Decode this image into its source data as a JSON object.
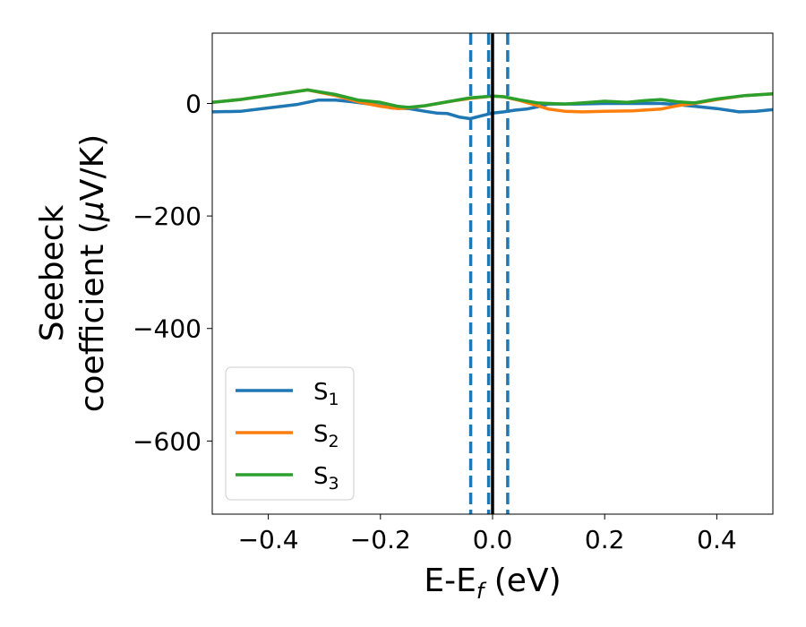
{
  "chart_data": {
    "type": "line",
    "xlabel": "E-E",
    "xlabel_sub": "f",
    "xlabel_unit": " (eV)",
    "ylabel_line1": "Seebeck",
    "ylabel_line2": "coefficient  (",
    "ylabel_mu": "μ",
    "ylabel_unit": "V/K)",
    "xlim": [
      -0.5,
      0.5
    ],
    "ylim": [
      -730,
      125
    ],
    "xticks": [
      -0.4,
      -0.2,
      0.0,
      0.2,
      0.4
    ],
    "xtick_labels": [
      "−0.4",
      "−0.2",
      "0.0",
      "0.2",
      "0.4"
    ],
    "yticks": [
      0,
      -200,
      -400,
      -600
    ],
    "ytick_labels": [
      "0",
      "−200",
      "−400",
      "−600"
    ],
    "legend_position": "lower-left",
    "series": [
      {
        "name": "S",
        "sub": "1",
        "color": "#1f77b4",
        "x": [
          -0.5,
          -0.45,
          -0.4,
          -0.35,
          -0.31,
          -0.28,
          -0.25,
          -0.22,
          -0.2,
          -0.18,
          -0.15,
          -0.12,
          -0.1,
          -0.08,
          -0.06,
          -0.04,
          -0.02,
          0.0,
          0.02,
          0.04,
          0.06,
          0.08,
          0.1,
          0.12,
          0.15,
          0.2,
          0.25,
          0.3,
          0.33,
          0.36,
          0.4,
          0.44,
          0.47,
          0.5
        ],
        "y": [
          -15,
          -14,
          -8,
          -2,
          6,
          6,
          3,
          -1,
          -4,
          -8,
          -9,
          -14,
          -17,
          -18,
          -24,
          -27,
          -22,
          -17,
          -15,
          -12,
          -10,
          -6,
          -1,
          -1,
          -1,
          0,
          0,
          0,
          -2,
          -5,
          -9,
          -15,
          -14,
          -11
        ]
      },
      {
        "name": "S",
        "sub": "2",
        "color": "#ff7f0e",
        "x": [
          -0.5,
          -0.45,
          -0.4,
          -0.33,
          -0.28,
          -0.24,
          -0.2,
          -0.17,
          -0.15,
          -0.12,
          -0.08,
          -0.04,
          0.0,
          0.02,
          0.05,
          0.08,
          0.1,
          0.13,
          0.16,
          0.2,
          0.25,
          0.3,
          0.33,
          0.36,
          0.4,
          0.45,
          0.5
        ],
        "y": [
          2,
          7,
          14,
          24,
          14,
          3,
          -5,
          -9,
          -8,
          -4,
          3,
          9,
          13,
          12,
          5,
          -4,
          -10,
          -14,
          -15,
          -14,
          -13,
          -10,
          -4,
          0,
          7,
          14,
          17
        ]
      },
      {
        "name": "S",
        "sub": "3",
        "color": "#2ca02c",
        "x": [
          -0.5,
          -0.45,
          -0.4,
          -0.33,
          -0.28,
          -0.24,
          -0.2,
          -0.17,
          -0.15,
          -0.12,
          -0.08,
          -0.04,
          0.0,
          0.02,
          0.05,
          0.08,
          0.1,
          0.13,
          0.16,
          0.2,
          0.24,
          0.27,
          0.3,
          0.33,
          0.36,
          0.4,
          0.45,
          0.5
        ],
        "y": [
          2,
          7,
          14,
          24,
          16,
          6,
          2,
          -5,
          -7,
          -4,
          3,
          10,
          13,
          12,
          6,
          1,
          0,
          -1,
          1,
          4,
          2,
          5,
          7,
          3,
          1,
          8,
          14,
          17
        ]
      }
    ],
    "vlines": [
      {
        "x": -0.039,
        "style": "dashed",
        "color": "#1f77b4"
      },
      {
        "x": -0.007,
        "style": "dashed",
        "color": "#1f77b4"
      },
      {
        "x": 0.027,
        "style": "dashed",
        "color": "#1f77b4"
      },
      {
        "x": 0.0,
        "style": "solid",
        "color": "#000000"
      }
    ]
  }
}
